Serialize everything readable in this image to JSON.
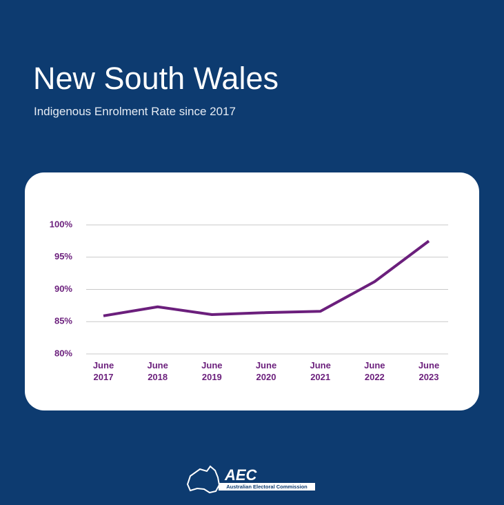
{
  "header": {
    "title": "New South Wales",
    "subtitle": "Indigenous Enrolment Rate since 2017"
  },
  "chart_data": {
    "type": "line",
    "categories": [
      "June 2017",
      "June 2018",
      "June 2019",
      "June 2020",
      "June 2021",
      "June 2022",
      "June 2023"
    ],
    "values": [
      85.9,
      87.3,
      86.1,
      86.4,
      86.6,
      91.2,
      97.5
    ],
    "color": "#6b1f7c",
    "ylim": [
      80,
      100
    ],
    "yticks": [
      {
        "value": 80,
        "label": "80%"
      },
      {
        "value": 85,
        "label": "85%"
      },
      {
        "value": 90,
        "label": "90%"
      },
      {
        "value": 95,
        "label": "95%"
      },
      {
        "value": 100,
        "label": "100%"
      }
    ],
    "grid": true
  },
  "logo": {
    "name": "AEC",
    "full_name": "Australian Electoral Commission"
  }
}
